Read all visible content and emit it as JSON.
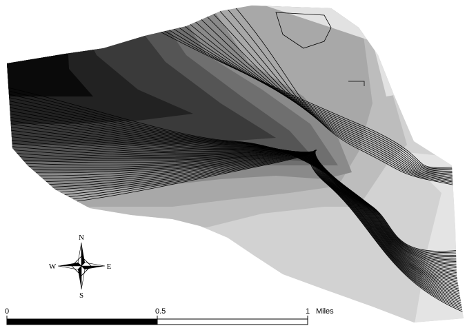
{
  "compass": {
    "north": "N",
    "east": "E",
    "south": "S",
    "west": "W"
  },
  "scale_bar": {
    "ticks": [
      0,
      0.5,
      1
    ],
    "unit": "Miles"
  }
}
